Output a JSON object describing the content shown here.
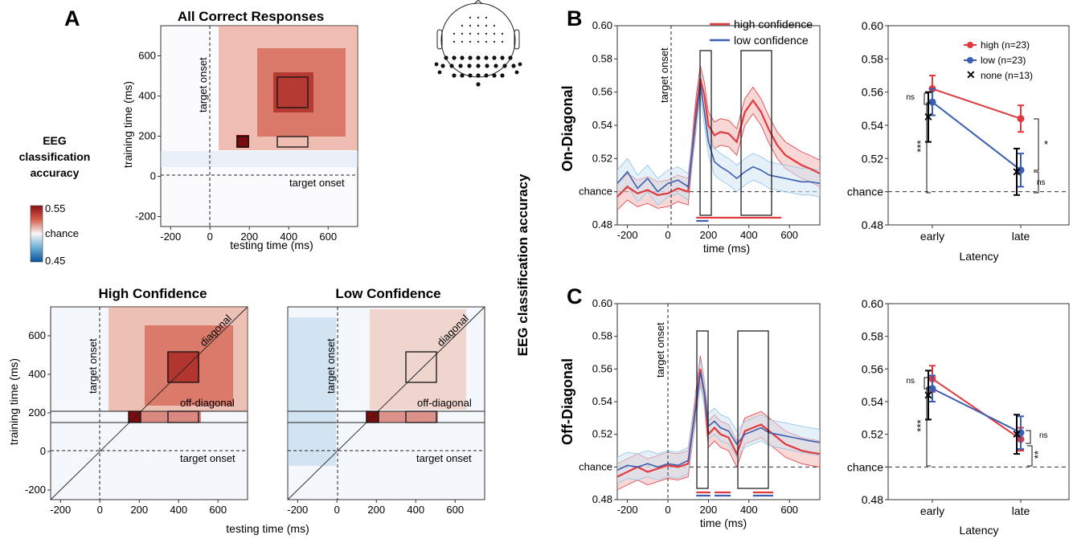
{
  "figure": {
    "panel_labels": {
      "a": "A",
      "b": "B",
      "c": "C"
    },
    "shared_ylabel": "EEG classification accuracy",
    "shared_xlabel_bottom": "testing time (ms)",
    "colors": {
      "high": "#e0393e",
      "low": "#3a5fb0",
      "low_band": "#8fc3e6",
      "none": "#000000"
    }
  },
  "colorbar": {
    "title_lines": [
      "EEG",
      "classification",
      "accuracy"
    ],
    "max_label": "0.55",
    "mid_label": "chance",
    "min_label": "0.45"
  },
  "chart_data": [
    {
      "type": "heatmap",
      "title": "All Correct Responses",
      "xlabel": "testing time (ms)",
      "ylabel": "training time (ms)",
      "xticks": [
        "-200",
        "0",
        "200",
        "400",
        "600"
      ],
      "yticks": [
        "600",
        "400",
        "200",
        "0",
        "-200"
      ],
      "xlim": [
        -250,
        750
      ],
      "ylim": [
        -250,
        750
      ],
      "annotations": [
        "target onset",
        "target onset"
      ]
    },
    {
      "type": "heatmap",
      "title": "High Confidence",
      "ylabel": "training time (ms)",
      "xticks": [
        "-200",
        "0",
        "200",
        "400",
        "600"
      ],
      "yticks": [
        "600",
        "400",
        "200",
        "0",
        "-200"
      ],
      "xlim": [
        -250,
        750
      ],
      "ylim": [
        -250,
        750
      ],
      "annotations": [
        "target onset",
        "target onset",
        "diagonal",
        "off-diagonal"
      ]
    },
    {
      "type": "heatmap",
      "title": "Low Confidence",
      "xticks": [
        "-200",
        "0",
        "200",
        "400",
        "600"
      ],
      "xlim": [
        -250,
        750
      ],
      "ylim": [
        -250,
        750
      ],
      "annotations": [
        "target onset",
        "target onset",
        "diagonal",
        "off-diagonal"
      ]
    },
    {
      "type": "line",
      "panel": "B",
      "row_label": "On-Diagonal",
      "xlabel": "time (ms)",
      "xticks": [
        "-200",
        "0",
        "200",
        "400",
        "600"
      ],
      "yticks": [
        "0.60",
        "0.58",
        "0.56",
        "0.54",
        "0.52",
        "chance",
        "0.48"
      ],
      "xlim": [
        -250,
        750
      ],
      "ylim": [
        0.48,
        0.6
      ],
      "chance": 0.5,
      "annotation": "target onset",
      "legend": [
        "high confidence",
        "low confidence"
      ],
      "x": [
        -250,
        -200,
        -150,
        -100,
        -50,
        0,
        50,
        100,
        140,
        160,
        180,
        200,
        230,
        260,
        300,
        340,
        380,
        420,
        460,
        500,
        540,
        580,
        620,
        660,
        700,
        750
      ],
      "series": [
        {
          "name": "high confidence",
          "values": [
            0.497,
            0.503,
            0.499,
            0.501,
            0.498,
            0.499,
            0.502,
            0.5,
            0.55,
            0.568,
            0.558,
            0.54,
            0.534,
            0.536,
            0.535,
            0.53,
            0.548,
            0.555,
            0.548,
            0.537,
            0.528,
            0.522,
            0.519,
            0.516,
            0.514,
            0.511
          ]
        },
        {
          "name": "low confidence",
          "values": [
            0.505,
            0.512,
            0.502,
            0.508,
            0.5,
            0.505,
            0.507,
            0.503,
            0.545,
            0.565,
            0.548,
            0.53,
            0.518,
            0.515,
            0.512,
            0.508,
            0.512,
            0.515,
            0.513,
            0.51,
            0.509,
            0.508,
            0.507,
            0.506,
            0.506,
            0.505
          ]
        }
      ],
      "sig_bars": [
        {
          "color": "high",
          "from": 140,
          "to": 560
        },
        {
          "color": "low",
          "from": 140,
          "to": 200
        }
      ]
    },
    {
      "type": "line",
      "panel": "C",
      "row_label": "Off-Diagonal",
      "xlabel": "time (ms)",
      "xticks": [
        "-200",
        "0",
        "200",
        "400",
        "600"
      ],
      "yticks": [
        "0.60",
        "0.58",
        "0.56",
        "0.54",
        "0.52",
        "chance",
        "0.48"
      ],
      "xlim": [
        -250,
        750
      ],
      "ylim": [
        0.48,
        0.6
      ],
      "chance": 0.5,
      "annotation": "target onset",
      "x": [
        -250,
        -200,
        -150,
        -100,
        -50,
        0,
        50,
        100,
        140,
        160,
        180,
        200,
        230,
        260,
        300,
        340,
        380,
        420,
        460,
        500,
        540,
        580,
        620,
        660,
        700,
        750
      ],
      "series": [
        {
          "name": "high confidence",
          "values": [
            0.494,
            0.497,
            0.5,
            0.497,
            0.499,
            0.501,
            0.5,
            0.502,
            0.54,
            0.56,
            0.545,
            0.52,
            0.524,
            0.52,
            0.518,
            0.508,
            0.522,
            0.524,
            0.526,
            0.522,
            0.518,
            0.514,
            0.512,
            0.51,
            0.509,
            0.508
          ]
        },
        {
          "name": "low confidence",
          "values": [
            0.498,
            0.501,
            0.5,
            0.502,
            0.5,
            0.502,
            0.501,
            0.504,
            0.538,
            0.558,
            0.545,
            0.525,
            0.528,
            0.524,
            0.522,
            0.514,
            0.52,
            0.522,
            0.524,
            0.521,
            0.52,
            0.519,
            0.518,
            0.517,
            0.516,
            0.515
          ]
        }
      ],
      "sig_bars": [
        {
          "color": "high",
          "from": 140,
          "to": 210
        },
        {
          "color": "low",
          "from": 140,
          "to": 210
        },
        {
          "color": "high",
          "from": 230,
          "to": 310
        },
        {
          "color": "low",
          "from": 230,
          "to": 310
        },
        {
          "color": "high",
          "from": 420,
          "to": 520
        },
        {
          "color": "low",
          "from": 420,
          "to": 520
        }
      ]
    },
    {
      "type": "line",
      "panel": "B-right",
      "xlabel": "Latency",
      "categories": [
        "early",
        "late"
      ],
      "yticks": [
        "0.60",
        "0.58",
        "0.56",
        "0.54",
        "0.52",
        "chance",
        "0.48"
      ],
      "ylim": [
        0.48,
        0.6
      ],
      "chance": 0.5,
      "legend": [
        "high (n=23)",
        "low (n=23)",
        "none (n=13)"
      ],
      "series": [
        {
          "name": "high (n=23)",
          "values": [
            0.562,
            0.544
          ],
          "err": [
            0.008,
            0.008
          ]
        },
        {
          "name": "low (n=23)",
          "values": [
            0.554,
            0.513
          ],
          "err": [
            0.008,
            0.01
          ]
        },
        {
          "name": "none (n=13)",
          "values": [
            0.545,
            0.512
          ],
          "err": [
            0.015,
            0.014
          ]
        }
      ],
      "stats": [
        "ns",
        "***",
        "*",
        "ns"
      ]
    },
    {
      "type": "line",
      "panel": "C-right",
      "xlabel": "Latency",
      "categories": [
        "early",
        "late"
      ],
      "yticks": [
        "0.60",
        "0.58",
        "0.56",
        "0.54",
        "0.52",
        "chance",
        "0.48"
      ],
      "ylim": [
        0.48,
        0.6
      ],
      "chance": 0.5,
      "series": [
        {
          "name": "high (n=23)",
          "values": [
            0.554,
            0.517
          ],
          "err": [
            0.008,
            0.007
          ]
        },
        {
          "name": "low (n=23)",
          "values": [
            0.548,
            0.521
          ],
          "err": [
            0.008,
            0.01
          ]
        },
        {
          "name": "none (n=13)",
          "values": [
            0.544,
            0.52
          ],
          "err": [
            0.015,
            0.012
          ]
        }
      ],
      "stats": [
        "ns",
        "***",
        "ns",
        "**"
      ]
    }
  ]
}
